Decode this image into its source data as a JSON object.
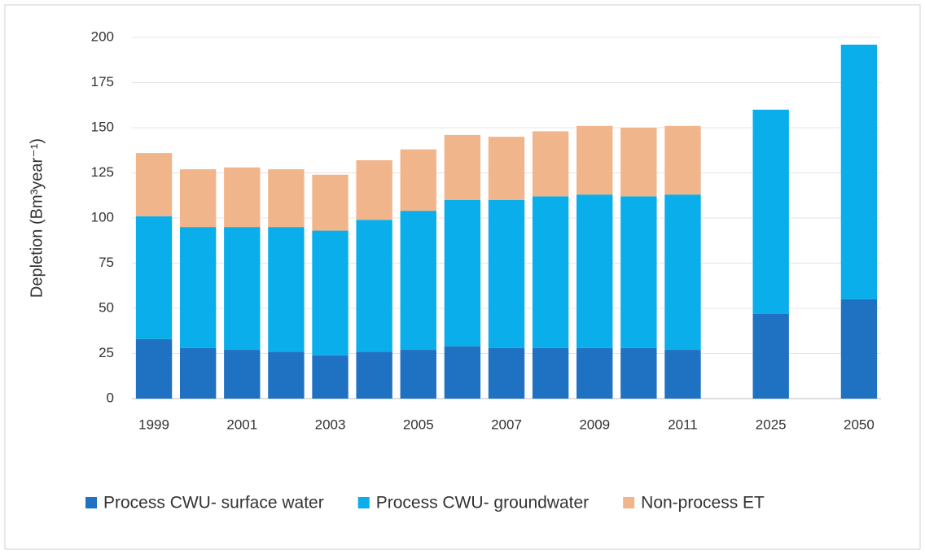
{
  "chart_data": {
    "type": "stacked_bar",
    "ylabel": "Depletion (Bm³year⁻¹)",
    "categories": [
      "1999",
      null,
      "2001",
      null,
      "2003",
      null,
      "2005",
      null,
      "2007",
      null,
      "2009",
      null,
      "2011",
      null,
      "2025",
      null,
      "2050"
    ],
    "series": [
      {
        "name": "Process CWU- surface water",
        "color": "#1f72c2",
        "values": [
          33,
          28,
          27,
          26,
          24,
          26,
          27,
          29,
          28,
          28,
          28,
          28,
          27,
          null,
          47,
          null,
          55
        ]
      },
      {
        "name": "Process CWU- groundwater",
        "color": "#0aaeea",
        "values": [
          68,
          67,
          68,
          69,
          69,
          73,
          77,
          81,
          82,
          84,
          85,
          84,
          86,
          null,
          113,
          null,
          141
        ]
      },
      {
        "name": "Non-process ET",
        "color": "#f1b58c",
        "values": [
          35,
          32,
          33,
          32,
          31,
          33,
          34,
          36,
          35,
          36,
          38,
          38,
          38,
          null,
          null,
          null,
          null
        ]
      }
    ],
    "ylim": [
      0,
      200
    ],
    "yticks": [
      0,
      25,
      50,
      75,
      100,
      125,
      150,
      175,
      200
    ],
    "grid": true,
    "legend": "bottom"
  }
}
